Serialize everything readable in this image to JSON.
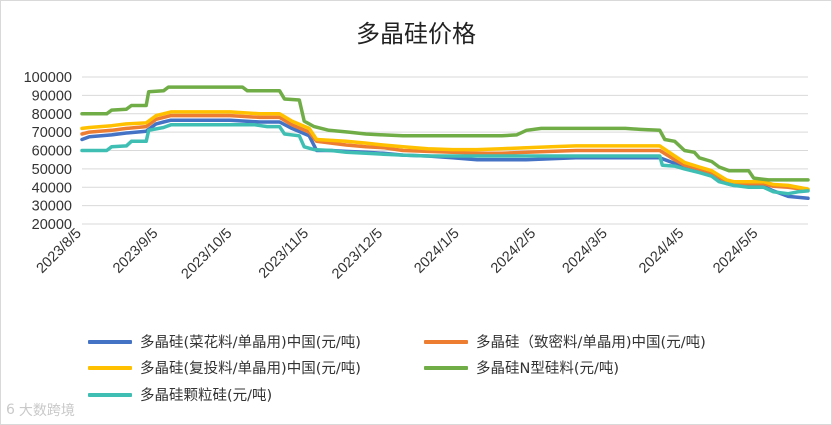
{
  "chart_data": {
    "type": "line",
    "title": "多晶硅价格",
    "xlabel": "",
    "ylabel": "",
    "ylim": [
      20000,
      100000
    ],
    "ytick_step": 10000,
    "xlim": [
      0,
      294
    ],
    "x_ticks": [
      {
        "label": "2023/8/5",
        "pos": 0
      },
      {
        "label": "2023/9/5",
        "pos": 31
      },
      {
        "label": "2023/10/5",
        "pos": 61
      },
      {
        "label": "2023/11/5",
        "pos": 92
      },
      {
        "label": "2023/12/5",
        "pos": 122
      },
      {
        "label": "2024/1/5",
        "pos": 153
      },
      {
        "label": "2024/2/5",
        "pos": 184
      },
      {
        "label": "2024/3/5",
        "pos": 213
      },
      {
        "label": "2024/4/5",
        "pos": 244
      },
      {
        "label": "2024/5/5",
        "pos": 274
      }
    ],
    "grid": true,
    "legend_position": "bottom",
    "series": [
      {
        "name": "多晶硅(菜花料/单晶用)中国(元/吨)",
        "color": "#4472C4",
        "points": [
          [
            0,
            66000
          ],
          [
            3,
            67500
          ],
          [
            12,
            68500
          ],
          [
            18,
            69500
          ],
          [
            26,
            70500
          ],
          [
            30,
            74500
          ],
          [
            33,
            75500
          ],
          [
            36,
            76500
          ],
          [
            60,
            76500
          ],
          [
            72,
            75500
          ],
          [
            80,
            75500
          ],
          [
            85,
            72000
          ],
          [
            92,
            68000
          ],
          [
            95,
            60000
          ],
          [
            101,
            60000
          ],
          [
            107,
            59500
          ],
          [
            115,
            59000
          ],
          [
            122,
            58500
          ],
          [
            130,
            57500
          ],
          [
            140,
            57000
          ],
          [
            150,
            56000
          ],
          [
            160,
            55000
          ],
          [
            170,
            55000
          ],
          [
            180,
            55000
          ],
          [
            190,
            55500
          ],
          [
            200,
            56000
          ],
          [
            210,
            56000
          ],
          [
            220,
            56000
          ],
          [
            234,
            56000
          ],
          [
            240,
            53000
          ],
          [
            244,
            51000
          ],
          [
            250,
            49000
          ],
          [
            255,
            47000
          ],
          [
            258,
            45000
          ],
          [
            261,
            42000
          ],
          [
            264,
            41000
          ],
          [
            270,
            40500
          ],
          [
            276,
            40500
          ],
          [
            280,
            38000
          ],
          [
            286,
            35000
          ],
          [
            294,
            34000
          ]
        ]
      },
      {
        "name": "多晶硅（致密料/单晶用)中国(元/吨)",
        "color": "#ED7D31",
        "points": [
          [
            0,
            69000
          ],
          [
            3,
            70000
          ],
          [
            12,
            71000
          ],
          [
            18,
            72000
          ],
          [
            26,
            73000
          ],
          [
            30,
            77000
          ],
          [
            33,
            78000
          ],
          [
            36,
            79000
          ],
          [
            60,
            79000
          ],
          [
            72,
            78000
          ],
          [
            80,
            78000
          ],
          [
            85,
            74000
          ],
          [
            92,
            70000
          ],
          [
            95,
            65000
          ],
          [
            101,
            64000
          ],
          [
            107,
            63000
          ],
          [
            115,
            62000
          ],
          [
            122,
            61500
          ],
          [
            130,
            60000
          ],
          [
            140,
            59500
          ],
          [
            150,
            59000
          ],
          [
            160,
            58500
          ],
          [
            170,
            58500
          ],
          [
            180,
            59000
          ],
          [
            190,
            59500
          ],
          [
            200,
            60000
          ],
          [
            210,
            60000
          ],
          [
            220,
            60000
          ],
          [
            234,
            60000
          ],
          [
            240,
            55000
          ],
          [
            244,
            52000
          ],
          [
            250,
            50000
          ],
          [
            255,
            48000
          ],
          [
            258,
            45500
          ],
          [
            261,
            43000
          ],
          [
            264,
            42000
          ],
          [
            270,
            42000
          ],
          [
            276,
            42000
          ],
          [
            280,
            40500
          ],
          [
            286,
            40000
          ],
          [
            294,
            38500
          ]
        ]
      },
      {
        "name": "多晶硅(复投料/单晶用)中国(元/吨)",
        "color": "#FFC000",
        "points": [
          [
            0,
            72000
          ],
          [
            3,
            72500
          ],
          [
            12,
            73500
          ],
          [
            18,
            74500
          ],
          [
            26,
            75000
          ],
          [
            30,
            79000
          ],
          [
            33,
            80000
          ],
          [
            36,
            81000
          ],
          [
            60,
            81000
          ],
          [
            72,
            80000
          ],
          [
            80,
            80000
          ],
          [
            85,
            76000
          ],
          [
            92,
            72000
          ],
          [
            95,
            66000
          ],
          [
            101,
            65500
          ],
          [
            107,
            65000
          ],
          [
            115,
            64000
          ],
          [
            122,
            63000
          ],
          [
            130,
            62000
          ],
          [
            140,
            61000
          ],
          [
            150,
            60500
          ],
          [
            160,
            60500
          ],
          [
            170,
            61000
          ],
          [
            180,
            61500
          ],
          [
            190,
            62000
          ],
          [
            200,
            62500
          ],
          [
            210,
            62500
          ],
          [
            220,
            62500
          ],
          [
            234,
            62500
          ],
          [
            240,
            57000
          ],
          [
            244,
            53500
          ],
          [
            250,
            51000
          ],
          [
            255,
            49000
          ],
          [
            258,
            46500
          ],
          [
            261,
            44000
          ],
          [
            264,
            43000
          ],
          [
            270,
            43000
          ],
          [
            276,
            43000
          ],
          [
            280,
            41500
          ],
          [
            286,
            41000
          ],
          [
            294,
            39000
          ]
        ]
      },
      {
        "name": "多晶硅N型硅料(元/吨)",
        "color": "#70AD47",
        "points": [
          [
            0,
            80000
          ],
          [
            10,
            80000
          ],
          [
            12,
            82000
          ],
          [
            18,
            82500
          ],
          [
            20,
            84500
          ],
          [
            26,
            84500
          ],
          [
            27,
            92000
          ],
          [
            33,
            92500
          ],
          [
            35,
            94500
          ],
          [
            65,
            94500
          ],
          [
            67,
            92500
          ],
          [
            80,
            92500
          ],
          [
            82,
            88000
          ],
          [
            88,
            87500
          ],
          [
            90,
            76000
          ],
          [
            94,
            73000
          ],
          [
            100,
            71000
          ],
          [
            108,
            70000
          ],
          [
            115,
            69000
          ],
          [
            122,
            68500
          ],
          [
            130,
            68000
          ],
          [
            140,
            68000
          ],
          [
            150,
            68000
          ],
          [
            160,
            68000
          ],
          [
            170,
            68000
          ],
          [
            176,
            68500
          ],
          [
            180,
            71000
          ],
          [
            186,
            72000
          ],
          [
            200,
            72000
          ],
          [
            220,
            72000
          ],
          [
            226,
            71500
          ],
          [
            234,
            71000
          ],
          [
            236,
            66000
          ],
          [
            240,
            65000
          ],
          [
            244,
            60000
          ],
          [
            248,
            59000
          ],
          [
            250,
            56000
          ],
          [
            255,
            54000
          ],
          [
            258,
            51000
          ],
          [
            262,
            49000
          ],
          [
            270,
            49000
          ],
          [
            272,
            45000
          ],
          [
            278,
            44000
          ],
          [
            286,
            44000
          ],
          [
            294,
            44000
          ]
        ]
      },
      {
        "name": "多晶硅颗粒硅(元/吨)",
        "color": "#3FBFB4",
        "points": [
          [
            0,
            60000
          ],
          [
            10,
            60000
          ],
          [
            12,
            62000
          ],
          [
            18,
            62500
          ],
          [
            20,
            65000
          ],
          [
            26,
            65000
          ],
          [
            27,
            71000
          ],
          [
            33,
            72500
          ],
          [
            36,
            74000
          ],
          [
            70,
            74000
          ],
          [
            75,
            73000
          ],
          [
            80,
            73000
          ],
          [
            82,
            69000
          ],
          [
            88,
            68000
          ],
          [
            90,
            62000
          ],
          [
            94,
            60500
          ],
          [
            101,
            60000
          ],
          [
            107,
            59000
          ],
          [
            115,
            58500
          ],
          [
            122,
            58000
          ],
          [
            130,
            57500
          ],
          [
            140,
            57000
          ],
          [
            150,
            57000
          ],
          [
            160,
            57000
          ],
          [
            170,
            57000
          ],
          [
            180,
            57000
          ],
          [
            190,
            57000
          ],
          [
            200,
            57000
          ],
          [
            210,
            57000
          ],
          [
            220,
            57000
          ],
          [
            234,
            57000
          ],
          [
            235,
            52000
          ],
          [
            240,
            51500
          ],
          [
            244,
            50000
          ],
          [
            250,
            48000
          ],
          [
            255,
            46000
          ],
          [
            258,
            43000
          ],
          [
            264,
            41000
          ],
          [
            270,
            40000
          ],
          [
            276,
            40000
          ],
          [
            280,
            37500
          ],
          [
            286,
            36500
          ],
          [
            290,
            37500
          ],
          [
            294,
            38000
          ]
        ]
      }
    ]
  },
  "watermark": {
    "icon": "6",
    "text": "大数跨境"
  }
}
